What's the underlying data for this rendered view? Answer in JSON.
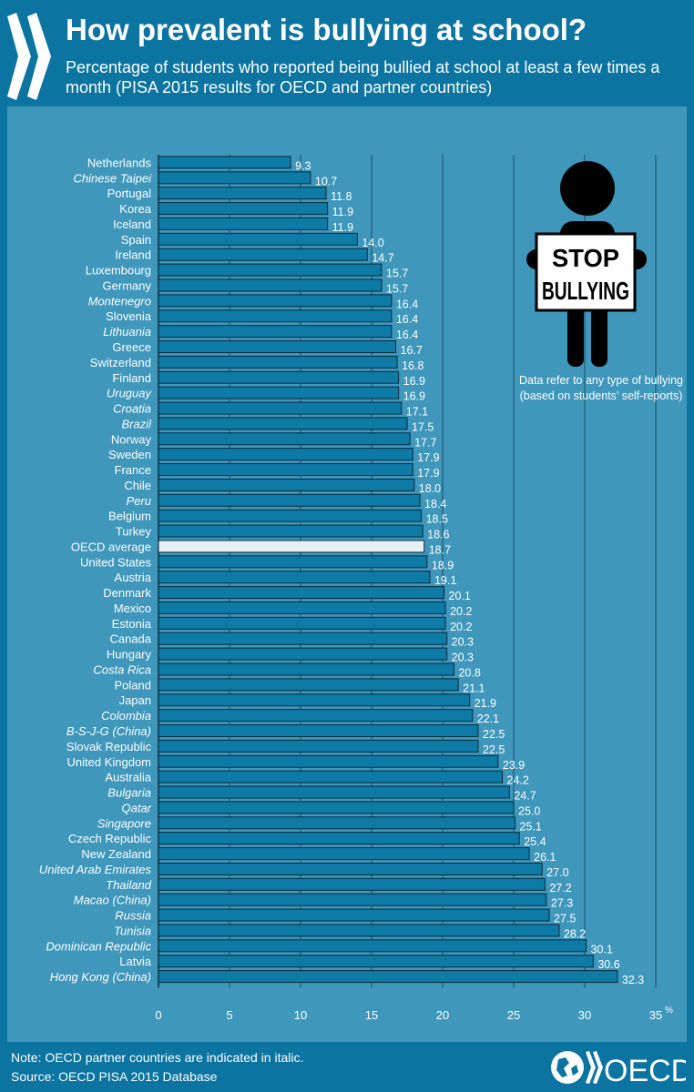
{
  "header": {
    "title": "How prevalent is bullying at school?",
    "subtitle": "Percentage of students who reported being bullied at school at least a few times a month (PISA 2015 results for OECD and partner countries)"
  },
  "illustration": {
    "sign_line1": "STOP",
    "sign_line2": "BULLYING",
    "caption": "Data refer to any type of bullying (based on students’ self-reports)"
  },
  "footer": {
    "note": "Note: OECD partner countries are indicated in italic.",
    "source": "Source: OECD PISA 2015 Database",
    "logo_text": "OECD"
  },
  "colors": {
    "background": "#0b74a1",
    "panel": "#3f97bb",
    "bar": "#0e7aa6",
    "bar_highlight": "#e8f0f4",
    "bar_border": "#0a2a3a"
  },
  "chart_data": {
    "type": "bar",
    "orientation": "horizontal",
    "xlim": [
      0,
      35
    ],
    "xticks": [
      0,
      5,
      10,
      15,
      20,
      25,
      30,
      35
    ],
    "unit_label": "%",
    "grid": true,
    "categories": [
      "Netherlands",
      "Chinese Taipei",
      "Portugal",
      "Korea",
      "Iceland",
      "Spain",
      "Ireland",
      "Luxembourg",
      "Germany",
      "Montenegro",
      "Slovenia",
      "Lithuania",
      "Greece",
      "Switzerland",
      "Finland",
      "Uruguay",
      "Croatia",
      "Brazil",
      "Norway",
      "Sweden",
      "France",
      "Chile",
      "Peru",
      "Belgium",
      "Turkey",
      "OECD average",
      "United States",
      "Austria",
      "Denmark",
      "Mexico",
      "Estonia",
      "Canada",
      "Hungary",
      "Costa Rica",
      "Poland",
      "Japan",
      "Colombia",
      "B-S-J-G (China)",
      "Slovak Republic",
      "United Kingdom",
      "Australia",
      "Bulgaria",
      "Qatar",
      "Singapore",
      "Czech Republic",
      "New Zealand",
      "United Arab Emirates",
      "Thailand",
      "Macao (China)",
      "Russia",
      "Tunisia",
      "Dominican Republic",
      "Latvia",
      "Hong Kong (China)"
    ],
    "values": [
      9.3,
      10.7,
      11.8,
      11.9,
      11.9,
      14.0,
      14.7,
      15.7,
      15.7,
      16.4,
      16.4,
      16.4,
      16.7,
      16.8,
      16.9,
      16.9,
      17.1,
      17.5,
      17.7,
      17.9,
      17.9,
      18.0,
      18.4,
      18.5,
      18.6,
      18.7,
      18.9,
      19.1,
      20.1,
      20.2,
      20.2,
      20.3,
      20.3,
      20.8,
      21.1,
      21.9,
      22.1,
      22.5,
      22.5,
      23.9,
      24.2,
      24.7,
      25.0,
      25.1,
      25.4,
      26.1,
      27.0,
      27.2,
      27.3,
      27.5,
      28.2,
      30.1,
      30.6,
      32.3
    ],
    "italic_categories": [
      "Chinese Taipei",
      "Montenegro",
      "Lithuania",
      "Uruguay",
      "Croatia",
      "Brazil",
      "Peru",
      "Costa Rica",
      "Colombia",
      "B-S-J-G (China)",
      "Bulgaria",
      "Qatar",
      "Singapore",
      "United Arab Emirates",
      "Thailand",
      "Macao (China)",
      "Russia",
      "Tunisia",
      "Dominican Republic",
      "Hong Kong (China)"
    ],
    "highlight": "OECD average"
  }
}
